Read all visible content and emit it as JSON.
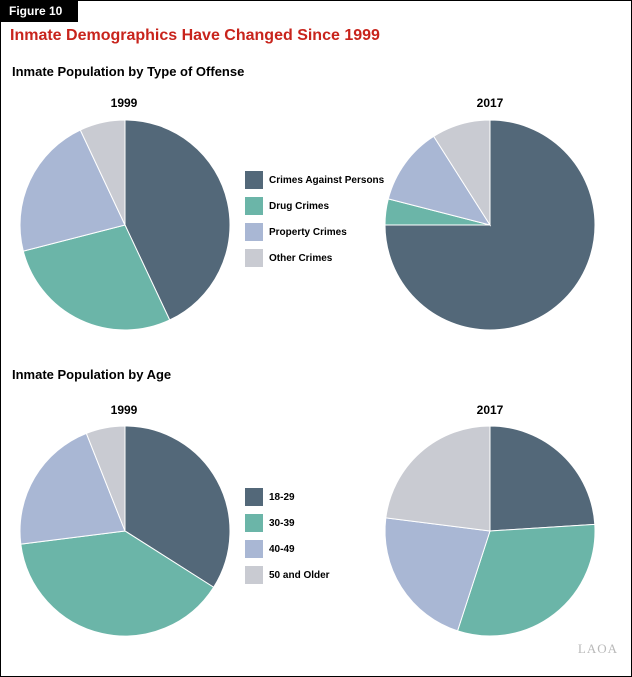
{
  "figure_label": "Figure 10",
  "figure_title": "Inmate Demographics Have Changed Since 1999",
  "logo": "LAOA",
  "colors": {
    "title": "#c8241c",
    "series": [
      "#536879",
      "#6bb5a8",
      "#a9b7d4",
      "#c9cbd2"
    ]
  },
  "sections": [
    {
      "title": "Inmate Population by Type of Offense",
      "legend": [
        "Crimes Against Persons",
        "Drug Crimes",
        "Property Crimes",
        "Other Crimes"
      ]
    },
    {
      "title": "Inmate Population by Age",
      "legend": [
        "18-29",
        "30-39",
        "40-49",
        "50 and Older"
      ]
    }
  ],
  "chart_data": [
    {
      "type": "pie",
      "title": "1999",
      "group": "Inmate Population by Type of Offense",
      "categories": [
        "Crimes Against Persons",
        "Drug Crimes",
        "Property Crimes",
        "Other Crimes"
      ],
      "values": [
        43,
        28,
        22,
        7
      ]
    },
    {
      "type": "pie",
      "title": "2017",
      "group": "Inmate Population by Type of Offense",
      "categories": [
        "Crimes Against Persons",
        "Drug Crimes",
        "Property Crimes",
        "Other Crimes"
      ],
      "values": [
        75,
        4,
        12,
        9
      ]
    },
    {
      "type": "pie",
      "title": "1999",
      "group": "Inmate Population by Age",
      "categories": [
        "18-29",
        "30-39",
        "40-49",
        "50 and Older"
      ],
      "values": [
        34,
        39,
        21,
        6
      ]
    },
    {
      "type": "pie",
      "title": "2017",
      "group": "Inmate Population by Age",
      "categories": [
        "18-29",
        "30-39",
        "40-49",
        "50 and Older"
      ],
      "values": [
        24,
        31,
        22,
        23
      ]
    }
  ]
}
